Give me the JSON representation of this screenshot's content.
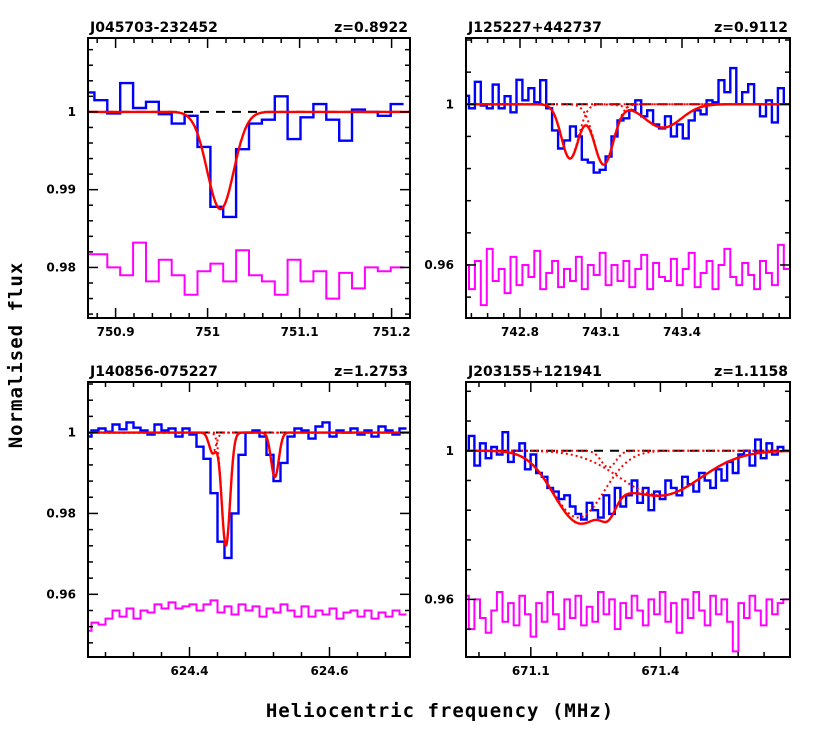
{
  "figure": {
    "xlabel": "Heliocentric frequency (MHz)",
    "ylabel": "Normalised flux"
  },
  "colors": {
    "data": "#0000ff",
    "fit": "#ff0000",
    "residual": "#ff00ff",
    "continuum": "#000000"
  },
  "chart_data": [
    {
      "type": "line",
      "title": "J045703-232452",
      "redshift": "z=0.8922",
      "xlim": [
        750.87,
        751.22
      ],
      "ylim": [
        0.9735,
        1.0095
      ],
      "xticks": [
        750.9,
        751,
        751.1,
        751.2
      ],
      "xtick_labels": [
        "750.9",
        "751",
        "751.1",
        "751.2"
      ],
      "yticks": [
        0.98,
        0.99,
        1
      ],
      "ytick_labels": [
        "0.98",
        "0.99",
        "1"
      ],
      "continuum": 1,
      "spectrum": {
        "x": [
          750.87,
          750.884,
          750.898,
          750.912,
          750.926,
          750.94,
          750.954,
          750.968,
          750.982,
          750.996,
          751.01,
          751.024,
          751.038,
          751.052,
          751.066,
          751.08,
          751.094,
          751.108,
          751.122,
          751.136,
          751.15,
          751.164,
          751.178,
          751.192,
          751.206
        ],
        "y": [
          1.0025,
          1.0015,
          0.9998,
          1.0037,
          1.0005,
          1.0013,
          0.9997,
          0.9985,
          0.9995,
          0.9955,
          0.9878,
          0.9865,
          0.9952,
          0.9985,
          0.999,
          1.002,
          0.9965,
          0.9993,
          1.001,
          0.999,
          0.9963,
          1.0003,
          1.0,
          0.9995,
          1.001
        ]
      },
      "fit": {
        "components": [
          {
            "center": 751.014,
            "depth": 0.0125,
            "fwhm": 0.034
          }
        ]
      },
      "residual": {
        "x": [
          750.87,
          750.884,
          750.898,
          750.912,
          750.926,
          750.94,
          750.954,
          750.968,
          750.982,
          750.996,
          751.01,
          751.024,
          751.038,
          751.052,
          751.066,
          751.08,
          751.094,
          751.108,
          751.122,
          751.136,
          751.15,
          751.164,
          751.178,
          751.192,
          751.206
        ],
        "y": [
          0.9817,
          0.9817,
          0.98,
          0.979,
          0.9832,
          0.9782,
          0.981,
          0.979,
          0.9765,
          0.9795,
          0.9805,
          0.9782,
          0.9822,
          0.979,
          0.9782,
          0.9765,
          0.981,
          0.9782,
          0.9795,
          0.976,
          0.9793,
          0.9773,
          0.98,
          0.9795,
          0.98
        ]
      }
    },
    {
      "type": "line",
      "title": "J125227+442737",
      "redshift": "z=0.9112",
      "xlim": [
        742.6,
        743.8
      ],
      "ylim": [
        0.9468,
        1.0165
      ],
      "xticks": [
        742.8,
        743.1,
        743.4
      ],
      "xtick_labels": [
        "742.8",
        "743.1",
        "743.4"
      ],
      "yticks": [
        0.96,
        1
      ],
      "ytick_labels": [
        "0.96",
        "1"
      ],
      "continuum": 1,
      "spectrum": {
        "x": [
          742.6,
          742.622,
          742.644,
          742.666,
          742.688,
          742.71,
          742.732,
          742.754,
          742.776,
          742.798,
          742.82,
          742.842,
          742.864,
          742.886,
          742.908,
          742.93,
          742.952,
          742.974,
          742.996,
          743.018,
          743.04,
          743.062,
          743.084,
          743.106,
          743.128,
          743.15,
          743.172,
          743.194,
          743.216,
          743.238,
          743.26,
          743.282,
          743.304,
          743.326,
          743.348,
          743.37,
          743.392,
          743.414,
          743.436,
          743.458,
          743.48,
          743.502,
          743.524,
          743.546,
          743.568,
          743.59,
          743.612,
          743.634,
          743.656,
          743.678,
          743.7,
          743.722,
          743.744,
          743.766,
          743.788
        ],
        "y": [
          1.0021,
          0.999,
          1.0056,
          0.9997,
          0.999,
          1.0049,
          0.999,
          1.002,
          0.998,
          1.0061,
          1.001,
          1.004,
          1.0005,
          1.006,
          0.999,
          0.9935,
          0.989,
          0.991,
          0.9945,
          0.992,
          0.9862,
          0.9855,
          0.983,
          0.9837,
          0.987,
          0.992,
          0.996,
          0.9965,
          0.9985,
          1.001,
          0.997,
          0.9985,
          0.995,
          0.994,
          0.997,
          0.992,
          0.995,
          0.9915,
          0.996,
          0.9985,
          0.9975,
          1.001,
          1.0005,
          1.006,
          1.003,
          1.009,
          1.0,
          1.003,
          1.005,
          1.0,
          0.997,
          1.001,
          0.9955,
          1.004,
          1.0
        ]
      },
      "fit": {
        "components": [
          {
            "center": 742.985,
            "depth": 0.0135,
            "fwhm": 0.075
          },
          {
            "center": 743.11,
            "depth": 0.015,
            "fwhm": 0.085
          },
          {
            "center": 743.33,
            "depth": 0.0058,
            "fwhm": 0.16
          }
        ]
      },
      "residual": {
        "x": [
          742.6,
          742.622,
          742.644,
          742.666,
          742.688,
          742.71,
          742.732,
          742.754,
          742.776,
          742.798,
          742.82,
          742.842,
          742.864,
          742.886,
          742.908,
          742.93,
          742.952,
          742.974,
          742.996,
          743.018,
          743.04,
          743.062,
          743.084,
          743.106,
          743.128,
          743.15,
          743.172,
          743.194,
          743.216,
          743.238,
          743.26,
          743.282,
          743.304,
          743.326,
          743.348,
          743.37,
          743.392,
          743.414,
          743.436,
          743.458,
          743.48,
          743.502,
          743.524,
          743.546,
          743.568,
          743.59,
          743.612,
          743.634,
          743.656,
          743.678,
          743.7,
          743.722,
          743.744,
          743.766,
          743.788
        ],
        "y": [
          0.96,
          0.954,
          0.961,
          0.95,
          0.964,
          0.956,
          0.959,
          0.953,
          0.962,
          0.955,
          0.96,
          0.957,
          0.9635,
          0.954,
          0.958,
          0.961,
          0.9545,
          0.959,
          0.956,
          0.962,
          0.954,
          0.96,
          0.9575,
          0.963,
          0.955,
          0.96,
          0.956,
          0.961,
          0.9545,
          0.959,
          0.9625,
          0.954,
          0.9605,
          0.957,
          0.956,
          0.9615,
          0.955,
          0.959,
          0.963,
          0.9545,
          0.958,
          0.961,
          0.954,
          0.96,
          0.964,
          0.957,
          0.955,
          0.9605,
          0.9575,
          0.954,
          0.961,
          0.958,
          0.955,
          0.965,
          0.959
        ]
      }
    },
    {
      "type": "line",
      "title": "J140856-075227",
      "redshift": "z=1.2753",
      "xlim": [
        624.255,
        624.715
      ],
      "ylim": [
        0.9445,
        1.0125
      ],
      "xticks": [
        624.4,
        624.6
      ],
      "xtick_labels": [
        "624.4",
        "624.6"
      ],
      "yticks": [
        0.96,
        0.98,
        1
      ],
      "ytick_labels": [
        "0.96",
        "0.98",
        "1"
      ],
      "continuum": 1,
      "spectrum": {
        "x": [
          624.255,
          624.265,
          624.275,
          624.285,
          624.295,
          624.305,
          624.315,
          624.325,
          624.335,
          624.345,
          624.355,
          624.365,
          624.375,
          624.385,
          624.395,
          624.405,
          624.415,
          624.425,
          624.435,
          624.445,
          624.455,
          624.465,
          624.475,
          624.485,
          624.495,
          624.505,
          624.515,
          624.525,
          624.535,
          624.545,
          624.555,
          624.565,
          624.575,
          624.585,
          624.595,
          624.605,
          624.615,
          624.625,
          624.635,
          624.645,
          624.655,
          624.665,
          624.675,
          624.685,
          624.695,
          624.705
        ],
        "y": [
          0.999,
          1.0005,
          1.001,
          1.0002,
          1.002,
          1.0008,
          1.0025,
          1.0012,
          1.0005,
          0.9995,
          1.002,
          1.0005,
          1.001,
          0.999,
          1.001,
          0.9995,
          0.9965,
          0.9935,
          0.985,
          0.973,
          0.969,
          0.98,
          0.9945,
          1.0,
          1.0005,
          0.999,
          0.9945,
          0.988,
          0.9925,
          0.999,
          1.001,
          1.0005,
          0.9985,
          1.0015,
          1.0025,
          0.999,
          1.0005,
          1.0,
          1.001,
          0.9995,
          1.0005,
          0.999,
          1.0015,
          1.0005,
          0.9995,
          1.001
        ]
      },
      "fit": {
        "components": [
          {
            "center": 624.433,
            "depth": 0.005,
            "fwhm": 0.012
          },
          {
            "center": 624.452,
            "depth": 0.028,
            "fwhm": 0.014
          },
          {
            "center": 624.522,
            "depth": 0.011,
            "fwhm": 0.013
          }
        ]
      },
      "residual": {
        "x": [
          624.255,
          624.265,
          624.275,
          624.285,
          624.295,
          624.305,
          624.315,
          624.325,
          624.335,
          624.345,
          624.355,
          624.365,
          624.375,
          624.385,
          624.395,
          624.405,
          624.415,
          624.425,
          624.435,
          624.445,
          624.455,
          624.465,
          624.475,
          624.485,
          624.495,
          624.505,
          624.515,
          624.525,
          624.535,
          624.545,
          624.555,
          624.565,
          624.575,
          624.585,
          624.595,
          624.605,
          624.615,
          624.625,
          624.635,
          624.645,
          624.655,
          624.665,
          624.675,
          624.685,
          624.695,
          624.705
        ],
        "y": [
          0.951,
          0.953,
          0.9525,
          0.954,
          0.956,
          0.9545,
          0.9565,
          0.954,
          0.956,
          0.9555,
          0.9575,
          0.9565,
          0.958,
          0.9565,
          0.957,
          0.9575,
          0.956,
          0.9575,
          0.9585,
          0.9555,
          0.957,
          0.955,
          0.9575,
          0.956,
          0.957,
          0.9545,
          0.9565,
          0.9555,
          0.9575,
          0.956,
          0.9545,
          0.957,
          0.9545,
          0.956,
          0.955,
          0.9565,
          0.954,
          0.9555,
          0.956,
          0.9545,
          0.956,
          0.954,
          0.9555,
          0.9545,
          0.956,
          0.955
        ]
      }
    },
    {
      "type": "line",
      "title": "J203155+121941",
      "redshift": "z=1.1158",
      "xlim": [
        670.95,
        671.7
      ],
      "ylim": [
        0.9445,
        1.0185
      ],
      "xticks": [
        671.1,
        671.4
      ],
      "xtick_labels": [
        "671.1",
        "671.4"
      ],
      "yticks": [
        0.96,
        1
      ],
      "ytick_labels": [
        "0.96",
        "1"
      ],
      "continuum": 1,
      "spectrum": {
        "x": [
          670.95,
          670.963,
          670.976,
          670.989,
          671.002,
          671.015,
          671.028,
          671.041,
          671.054,
          671.067,
          671.08,
          671.093,
          671.106,
          671.119,
          671.132,
          671.145,
          671.158,
          671.171,
          671.184,
          671.197,
          671.21,
          671.223,
          671.236,
          671.249,
          671.262,
          671.275,
          671.288,
          671.301,
          671.314,
          671.327,
          671.34,
          671.353,
          671.366,
          671.379,
          671.392,
          671.405,
          671.418,
          671.431,
          671.444,
          671.457,
          671.47,
          671.483,
          671.496,
          671.509,
          671.522,
          671.535,
          671.548,
          671.561,
          671.574,
          671.587,
          671.6,
          671.613,
          671.626,
          671.639,
          671.652,
          671.665,
          671.678,
          671.691
        ],
        "y": [
          1.0,
          1.004,
          0.996,
          1.002,
          0.998,
          1.001,
          0.999,
          1.005,
          0.997,
          1.0,
          1.002,
          0.995,
          0.999,
          0.994,
          0.993,
          0.99,
          0.989,
          0.987,
          0.988,
          0.985,
          0.983,
          0.9815,
          0.986,
          0.984,
          0.982,
          0.988,
          0.983,
          0.99,
          0.985,
          0.988,
          0.992,
          0.986,
          0.99,
          0.984,
          0.989,
          0.987,
          0.992,
          0.99,
          0.988,
          0.993,
          0.991,
          0.989,
          0.994,
          0.992,
          0.99,
          0.995,
          0.992,
          0.997,
          0.994,
          0.999,
          1.0,
          0.996,
          1.003,
          0.998,
          1.002,
          0.999,
          1.001,
          1.0
        ]
      },
      "fit": {
        "components": [
          {
            "center": 671.21,
            "depth": 0.018,
            "fwhm": 0.14
          },
          {
            "center": 671.28,
            "depth": 0.0045,
            "fwhm": 0.04
          },
          {
            "center": 671.4,
            "depth": 0.012,
            "fwhm": 0.22
          }
        ]
      },
      "residual": {
        "x": [
          670.95,
          670.963,
          670.976,
          670.989,
          671.002,
          671.015,
          671.028,
          671.041,
          671.054,
          671.067,
          671.08,
          671.093,
          671.106,
          671.119,
          671.132,
          671.145,
          671.158,
          671.171,
          671.184,
          671.197,
          671.21,
          671.223,
          671.236,
          671.249,
          671.262,
          671.275,
          671.288,
          671.301,
          671.314,
          671.327,
          671.34,
          671.353,
          671.366,
          671.379,
          671.392,
          671.405,
          671.418,
          671.431,
          671.444,
          671.457,
          671.47,
          671.483,
          671.496,
          671.509,
          671.522,
          671.535,
          671.548,
          671.561,
          671.574,
          671.587,
          671.6,
          671.613,
          671.626,
          671.639,
          671.652,
          671.665,
          671.678,
          671.691
        ],
        "y": [
          0.961,
          0.952,
          0.96,
          0.955,
          0.951,
          0.957,
          0.962,
          0.954,
          0.959,
          0.953,
          0.961,
          0.956,
          0.95,
          0.959,
          0.954,
          0.962,
          0.956,
          0.952,
          0.96,
          0.955,
          0.961,
          0.953,
          0.958,
          0.954,
          0.962,
          0.956,
          0.96,
          0.952,
          0.959,
          0.955,
          0.961,
          0.957,
          0.953,
          0.96,
          0.956,
          0.962,
          0.954,
          0.959,
          0.951,
          0.96,
          0.955,
          0.962,
          0.957,
          0.953,
          0.961,
          0.956,
          0.96,
          0.954,
          0.946,
          0.959,
          0.955,
          0.961,
          0.957,
          0.953,
          0.96,
          0.956,
          0.959,
          0.96
        ]
      }
    }
  ]
}
